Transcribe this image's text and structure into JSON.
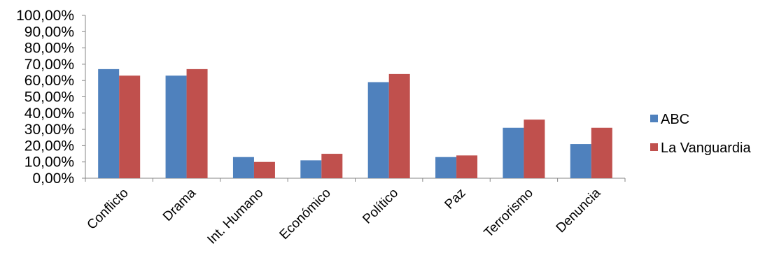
{
  "chart_data": {
    "type": "bar",
    "title": "",
    "xlabel": "",
    "ylabel": "",
    "ylim": [
      0,
      100
    ],
    "ytick_step": 10,
    "ytick_labels": [
      "0,00%",
      "10,00%",
      "20,00%",
      "30,00%",
      "40,00%",
      "50,00%",
      "60,00%",
      "70,00%",
      "80,00%",
      "90,00%",
      "100,00%"
    ],
    "grid": false,
    "legend_position": "right",
    "categories": [
      "Conflicto",
      "Drama",
      "Int. Humano",
      "Económico",
      "Político",
      "Paz",
      "Terrorismo",
      "Denuncia"
    ],
    "series": [
      {
        "name": "ABC",
        "color": "#4f81bd",
        "values": [
          67,
          63,
          13,
          11,
          59,
          13,
          31,
          21
        ]
      },
      {
        "name": "La Vanguardia",
        "color": "#c0504d",
        "values": [
          63,
          67,
          10,
          15,
          64,
          14,
          36,
          31
        ]
      }
    ]
  }
}
